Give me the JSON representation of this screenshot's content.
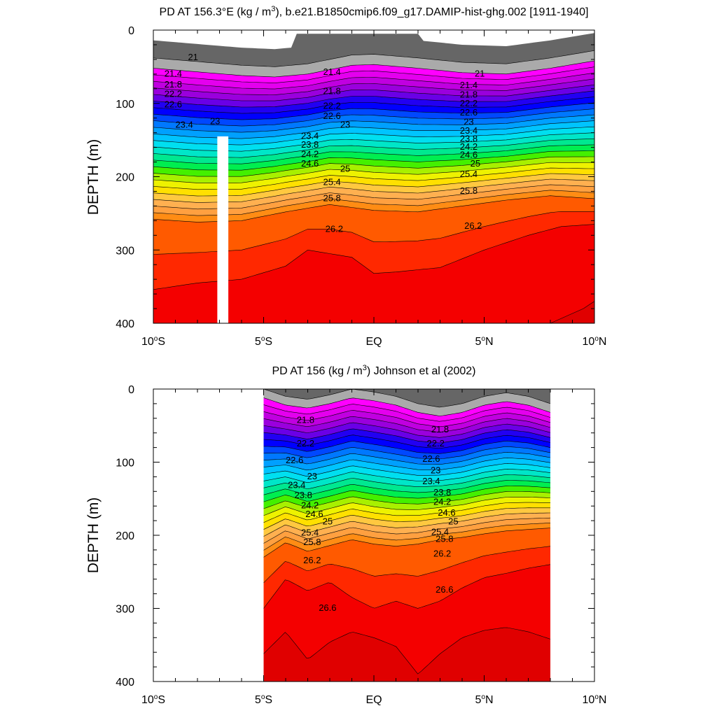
{
  "chart_data": [
    {
      "type": "contour",
      "title": "PD AT 156.3°E (kg / m³), b.e21.B1850cmip6.f09_g17.DAMIP-hist-ghg.002 [1911-1940]",
      "title_parts": {
        "pre": "PD AT 156.3°E (kg / m",
        "sup": "3",
        "post": "), b.e21.B1850cmip6.f09_g17.DAMIP-hist-ghg.002 [1911-1940]"
      },
      "ylabel": "DEPTH (m)",
      "xlim": [
        -10,
        10
      ],
      "ylim": [
        400,
        0
      ],
      "y_reversed": true,
      "xticks": [
        {
          "v": -10,
          "label": "10°S",
          "num": "10",
          "suf": "S"
        },
        {
          "v": -5,
          "label": "5°S",
          "num": "5",
          "suf": "S"
        },
        {
          "v": 0,
          "label": "EQ",
          "num": "EQ",
          "suf": ""
        },
        {
          "v": 5,
          "label": "5°N",
          "num": "5",
          "suf": "N"
        },
        {
          "v": 10,
          "label": "10°N",
          "num": "10",
          "suf": "N"
        }
      ],
      "yticks": [
        0,
        100,
        200,
        300,
        400
      ],
      "x_data_extent": [
        -10,
        10
      ],
      "missing_column": [
        -7.1,
        -6.6,
        145,
        400
      ],
      "contour_labels": [
        {
          "text": "21",
          "x": -8.2,
          "y": 38
        },
        {
          "text": "21.4",
          "x": -9.1,
          "y": 60
        },
        {
          "text": "21.8",
          "x": -9.1,
          "y": 75
        },
        {
          "text": "22.2",
          "x": -9.1,
          "y": 88
        },
        {
          "text": "22.6",
          "x": -9.1,
          "y": 102
        },
        {
          "text": "23",
          "x": -7.2,
          "y": 125
        },
        {
          "text": "23.4",
          "x": -8.6,
          "y": 130
        },
        {
          "text": "21.4",
          "x": -1.9,
          "y": 58
        },
        {
          "text": "21.8",
          "x": -1.9,
          "y": 84
        },
        {
          "text": "22.2",
          "x": -1.9,
          "y": 104
        },
        {
          "text": "22.6",
          "x": -1.9,
          "y": 118
        },
        {
          "text": "23",
          "x": -1.3,
          "y": 130
        },
        {
          "text": "23.4",
          "x": -2.9,
          "y": 145
        },
        {
          "text": "23.8",
          "x": -2.9,
          "y": 157
        },
        {
          "text": "24.2",
          "x": -2.9,
          "y": 170
        },
        {
          "text": "24.6",
          "x": -2.9,
          "y": 183
        },
        {
          "text": "25",
          "x": -1.3,
          "y": 190
        },
        {
          "text": "25.4",
          "x": -1.9,
          "y": 208
        },
        {
          "text": "25.8",
          "x": -1.9,
          "y": 230
        },
        {
          "text": "26.2",
          "x": -1.8,
          "y": 272
        },
        {
          "text": "21",
          "x": 4.8,
          "y": 60
        },
        {
          "text": "21.4",
          "x": 4.3,
          "y": 76
        },
        {
          "text": "21.8",
          "x": 4.3,
          "y": 89
        },
        {
          "text": "22.2",
          "x": 4.3,
          "y": 101
        },
        {
          "text": "22.6",
          "x": 4.3,
          "y": 113
        },
        {
          "text": "23",
          "x": 4.3,
          "y": 126
        },
        {
          "text": "23.4",
          "x": 4.3,
          "y": 138
        },
        {
          "text": "23.8",
          "x": 4.3,
          "y": 149
        },
        {
          "text": "24.2",
          "x": 4.3,
          "y": 160
        },
        {
          "text": "24.6",
          "x": 4.3,
          "y": 171
        },
        {
          "text": "25",
          "x": 4.6,
          "y": 183
        },
        {
          "text": "25.4",
          "x": 4.3,
          "y": 197
        },
        {
          "text": "25.8",
          "x": 4.3,
          "y": 220
        },
        {
          "text": "26.2",
          "x": 4.5,
          "y": 268
        }
      ]
    },
    {
      "type": "contour",
      "title": "PD AT 156 (kg / m³) Johnson et al (2002)",
      "title_parts": {
        "pre": "PD AT 156 (kg / m",
        "sup": "3",
        "post": ") Johnson et al (2002)"
      },
      "ylabel": "DEPTH (m)",
      "xlim": [
        -10,
        10
      ],
      "ylim": [
        400,
        0
      ],
      "y_reversed": true,
      "xticks": [
        {
          "v": -10,
          "label": "10°S",
          "num": "10",
          "suf": "S"
        },
        {
          "v": -5,
          "label": "5°S",
          "num": "5",
          "suf": "S"
        },
        {
          "v": 0,
          "label": "EQ",
          "num": "EQ",
          "suf": ""
        },
        {
          "v": 5,
          "label": "5°N",
          "num": "5",
          "suf": "N"
        },
        {
          "v": 10,
          "label": "10°N",
          "num": "10",
          "suf": "N"
        }
      ],
      "yticks": [
        0,
        100,
        200,
        300,
        400
      ],
      "x_data_extent": [
        -5,
        8
      ],
      "contour_labels": [
        {
          "text": "21.8",
          "x": -3.1,
          "y": 43
        },
        {
          "text": "22.2",
          "x": -3.1,
          "y": 75
        },
        {
          "text": "22.6",
          "x": -3.6,
          "y": 98
        },
        {
          "text": "23",
          "x": -2.8,
          "y": 120
        },
        {
          "text": "23.4",
          "x": -3.5,
          "y": 132
        },
        {
          "text": "23.8",
          "x": -3.2,
          "y": 146
        },
        {
          "text": "24.2",
          "x": -2.9,
          "y": 160
        },
        {
          "text": "24.6",
          "x": -2.7,
          "y": 172
        },
        {
          "text": "25",
          "x": -2.1,
          "y": 182
        },
        {
          "text": "25.4",
          "x": -2.9,
          "y": 197
        },
        {
          "text": "25.8",
          "x": -2.8,
          "y": 210
        },
        {
          "text": "26.2",
          "x": -2.8,
          "y": 235
        },
        {
          "text": "26.6",
          "x": -2.1,
          "y": 300
        },
        {
          "text": "21.8",
          "x": 3.0,
          "y": 56
        },
        {
          "text": "22.2",
          "x": 2.8,
          "y": 75
        },
        {
          "text": "22.6",
          "x": 2.6,
          "y": 96
        },
        {
          "text": "23",
          "x": 2.8,
          "y": 112
        },
        {
          "text": "23.4",
          "x": 2.6,
          "y": 127
        },
        {
          "text": "23.8",
          "x": 3.1,
          "y": 142
        },
        {
          "text": "24.2",
          "x": 3.1,
          "y": 155
        },
        {
          "text": "24.6",
          "x": 3.3,
          "y": 170
        },
        {
          "text": "25",
          "x": 3.6,
          "y": 182
        },
        {
          "text": "25.4",
          "x": 3.0,
          "y": 196
        },
        {
          "text": "25.8",
          "x": 3.2,
          "y": 206
        },
        {
          "text": "26.2",
          "x": 3.1,
          "y": 226
        },
        {
          "text": "26.6",
          "x": 3.2,
          "y": 275
        }
      ]
    }
  ],
  "colors": {
    "level_colors": [
      "#666666",
      "#aaaaaa",
      "#ff00ff",
      "#e400ee",
      "#c000e0",
      "#9a00dd",
      "#6a00e6",
      "#2200f2",
      "#0000ff",
      "#0048ff",
      "#0078ff",
      "#00a0ff",
      "#00c4ff",
      "#00dff0",
      "#00e6c8",
      "#00e890",
      "#00ee50",
      "#44f000",
      "#a8f000",
      "#eef200",
      "#ffe000",
      "#ffc840",
      "#ffb050",
      "#ffa040",
      "#ff8c14",
      "#ff5a00",
      "#ff2800",
      "#f40000",
      "#e00000",
      "#c80000"
    ],
    "land_mask": "#ffffff",
    "contour_line": "#000000"
  }
}
